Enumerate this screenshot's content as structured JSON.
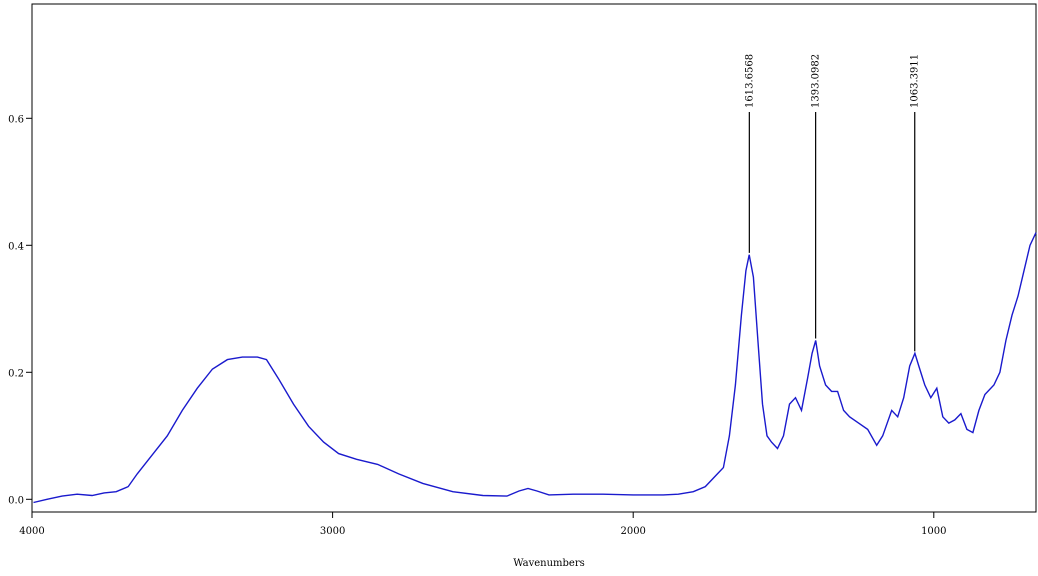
{
  "chart_data": {
    "type": "line",
    "title": "",
    "xlabel": "Wavenumbers",
    "ylabel": "",
    "xlim": [
      4000,
      660
    ],
    "ylim": [
      -0.02,
      0.78
    ],
    "x_reversed": true,
    "grid": false,
    "x_ticks": [
      {
        "value": 4000,
        "label": "4000"
      },
      {
        "value": 3000,
        "label": "3000"
      },
      {
        "value": 2000,
        "label": "2000"
      },
      {
        "value": 1000,
        "label": "1000"
      }
    ],
    "y_ticks": [
      {
        "value": 0.0,
        "label": "0.0"
      },
      {
        "value": 0.2,
        "label": "0.2"
      },
      {
        "value": 0.4,
        "label": "0.4"
      },
      {
        "value": 0.6,
        "label": "0.6"
      }
    ],
    "peak_annotations": [
      {
        "x": 1613.65,
        "y": 0.385,
        "label": "1613.6568"
      },
      {
        "x": 1393.09,
        "y": 0.25,
        "label": "1393.0982"
      },
      {
        "x": 1063.39,
        "y": 0.23,
        "label": "1063.3911"
      }
    ],
    "series": [
      {
        "color": "#1a1acd",
        "points": [
          [
            3995,
            -0.005
          ],
          [
            3950,
            0.0
          ],
          [
            3900,
            0.005
          ],
          [
            3850,
            0.008
          ],
          [
            3800,
            0.006
          ],
          [
            3760,
            0.01
          ],
          [
            3720,
            0.012
          ],
          [
            3680,
            0.02
          ],
          [
            3650,
            0.04
          ],
          [
            3600,
            0.07
          ],
          [
            3550,
            0.1
          ],
          [
            3500,
            0.14
          ],
          [
            3450,
            0.175
          ],
          [
            3400,
            0.205
          ],
          [
            3350,
            0.22
          ],
          [
            3300,
            0.224
          ],
          [
            3250,
            0.224
          ],
          [
            3220,
            0.22
          ],
          [
            3180,
            0.19
          ],
          [
            3130,
            0.15
          ],
          [
            3080,
            0.115
          ],
          [
            3030,
            0.09
          ],
          [
            2980,
            0.072
          ],
          [
            2920,
            0.063
          ],
          [
            2850,
            0.055
          ],
          [
            2780,
            0.04
          ],
          [
            2700,
            0.025
          ],
          [
            2600,
            0.012
          ],
          [
            2500,
            0.006
          ],
          [
            2420,
            0.005
          ],
          [
            2380,
            0.013
          ],
          [
            2350,
            0.017
          ],
          [
            2320,
            0.013
          ],
          [
            2280,
            0.007
          ],
          [
            2200,
            0.008
          ],
          [
            2100,
            0.008
          ],
          [
            2000,
            0.007
          ],
          [
            1900,
            0.007
          ],
          [
            1850,
            0.008
          ],
          [
            1800,
            0.012
          ],
          [
            1760,
            0.02
          ],
          [
            1720,
            0.04
          ],
          [
            1700,
            0.05
          ],
          [
            1680,
            0.1
          ],
          [
            1660,
            0.18
          ],
          [
            1640,
            0.29
          ],
          [
            1625,
            0.36
          ],
          [
            1614,
            0.385
          ],
          [
            1600,
            0.35
          ],
          [
            1585,
            0.25
          ],
          [
            1570,
            0.15
          ],
          [
            1555,
            0.1
          ],
          [
            1540,
            0.09
          ],
          [
            1520,
            0.08
          ],
          [
            1500,
            0.1
          ],
          [
            1480,
            0.15
          ],
          [
            1460,
            0.16
          ],
          [
            1440,
            0.14
          ],
          [
            1420,
            0.19
          ],
          [
            1405,
            0.23
          ],
          [
            1393,
            0.25
          ],
          [
            1380,
            0.21
          ],
          [
            1360,
            0.18
          ],
          [
            1340,
            0.17
          ],
          [
            1320,
            0.17
          ],
          [
            1300,
            0.14
          ],
          [
            1280,
            0.13
          ],
          [
            1250,
            0.12
          ],
          [
            1220,
            0.11
          ],
          [
            1190,
            0.085
          ],
          [
            1170,
            0.1
          ],
          [
            1140,
            0.14
          ],
          [
            1120,
            0.13
          ],
          [
            1100,
            0.16
          ],
          [
            1080,
            0.21
          ],
          [
            1063,
            0.23
          ],
          [
            1050,
            0.21
          ],
          [
            1030,
            0.18
          ],
          [
            1010,
            0.16
          ],
          [
            990,
            0.175
          ],
          [
            970,
            0.13
          ],
          [
            950,
            0.12
          ],
          [
            930,
            0.125
          ],
          [
            910,
            0.135
          ],
          [
            890,
            0.11
          ],
          [
            870,
            0.105
          ],
          [
            850,
            0.14
          ],
          [
            830,
            0.165
          ],
          [
            800,
            0.18
          ],
          [
            780,
            0.2
          ],
          [
            760,
            0.25
          ],
          [
            740,
            0.29
          ],
          [
            720,
            0.32
          ],
          [
            700,
            0.36
          ],
          [
            680,
            0.4
          ],
          [
            660,
            0.42
          ]
        ]
      }
    ]
  }
}
